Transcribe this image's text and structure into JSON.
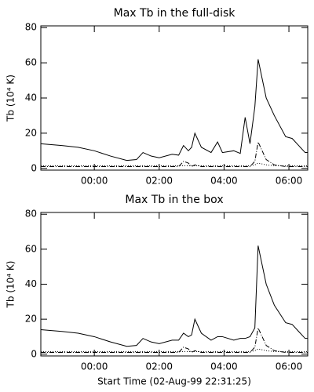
{
  "chart_data": [
    {
      "type": "line",
      "title": "Max Tb in the full-disk",
      "y_label": "Tb (10⁴ K)",
      "x": [
        -1.65,
        -1,
        -0.5,
        0,
        0.5,
        1,
        1.3,
        1.5,
        1.75,
        2,
        2.4,
        2.6,
        2.75,
        2.9,
        3.0,
        3.1,
        3.3,
        3.6,
        3.8,
        3.95,
        4.3,
        4.5,
        4.65,
        4.8,
        4.95,
        5.05,
        5.3,
        5.55,
        5.9,
        6.1,
        6.3,
        6.5,
        6.58
      ],
      "series": [
        {
          "color": "#000000",
          "dash": "solid",
          "values": [
            14,
            13,
            12,
            10,
            7,
            4.5,
            5,
            9,
            7,
            6,
            8,
            7.5,
            13,
            10,
            12,
            20,
            12,
            9,
            15,
            9,
            10,
            8.5,
            29,
            14,
            35,
            62,
            40,
            30,
            18,
            17,
            13,
            9,
            9
          ]
        },
        {
          "color": "#000000",
          "dash": "dashdot",
          "values": [
            1,
            1,
            1,
            1,
            1,
            1,
            1,
            1,
            1,
            1,
            1,
            1,
            4,
            3,
            1,
            2,
            1,
            1,
            1,
            1,
            1,
            1,
            1,
            1,
            4,
            15,
            5,
            2,
            1,
            1,
            1,
            1,
            1
          ]
        },
        {
          "color": "#000000",
          "dash": "dot",
          "values": [
            1.5,
            1.5,
            1.5,
            1.5,
            1.5,
            1.5,
            1.5,
            1.5,
            1.5,
            1.5,
            1.5,
            1.5,
            1.5,
            1.5,
            1.5,
            1.5,
            1.5,
            1.5,
            1.5,
            1.5,
            1.5,
            1.5,
            1.5,
            1.5,
            2,
            3,
            2,
            1.5,
            1.5,
            1.5,
            1.5,
            1.5,
            1.5
          ]
        }
      ],
      "xlim": [
        -1.65,
        6.58
      ],
      "xticks": [
        {
          "value": 0,
          "label": "00:00"
        },
        {
          "value": 2,
          "label": "02:00"
        },
        {
          "value": 4,
          "label": "04:00"
        },
        {
          "value": 6,
          "label": "06:00"
        }
      ],
      "ylim": [
        -1,
        81
      ],
      "yticks": [
        0,
        20,
        40,
        60,
        80
      ]
    },
    {
      "type": "line",
      "title": "Max Tb in the box",
      "y_label": "Tb (10⁴ K)",
      "x_label": "Start Time (02-Aug-99 22:31:25)",
      "x": [
        -1.65,
        -1,
        -0.5,
        0,
        0.5,
        1,
        1.3,
        1.5,
        1.75,
        2,
        2.4,
        2.6,
        2.75,
        2.9,
        3.0,
        3.1,
        3.3,
        3.6,
        3.8,
        3.95,
        4.3,
        4.5,
        4.65,
        4.8,
        4.95,
        5.05,
        5.3,
        5.55,
        5.9,
        6.1,
        6.3,
        6.5,
        6.58
      ],
      "series": [
        {
          "color": "#000000",
          "dash": "solid",
          "values": [
            14,
            13,
            12,
            10,
            7,
            4.5,
            5,
            9,
            7,
            6,
            8,
            8,
            12,
            10,
            11,
            20,
            12,
            8,
            10,
            10,
            8,
            9,
            9,
            10,
            15,
            62,
            40,
            28,
            18,
            17,
            13,
            9,
            9
          ]
        },
        {
          "color": "#000000",
          "dash": "dashdot",
          "values": [
            1,
            1,
            1,
            1,
            1,
            1,
            1,
            1,
            1,
            1,
            1,
            1,
            4,
            3,
            1,
            2,
            1,
            1,
            1,
            1,
            1,
            1,
            1,
            1,
            4,
            15,
            5,
            2,
            1,
            1,
            1,
            1,
            1
          ]
        },
        {
          "color": "#000000",
          "dash": "dot",
          "values": [
            1.5,
            1.5,
            1.5,
            1.5,
            1.5,
            1.5,
            1.5,
            1.5,
            1.5,
            1.5,
            1.5,
            1.5,
            1.5,
            1.5,
            1.5,
            1.5,
            1.5,
            1.5,
            1.5,
            1.5,
            1.5,
            1.5,
            1.5,
            1.5,
            2,
            3,
            2,
            1.5,
            1.5,
            1.5,
            1.5,
            1.5,
            1.5
          ]
        }
      ],
      "xlim": [
        -1.65,
        6.58
      ],
      "xticks": [
        {
          "value": 0,
          "label": "00:00"
        },
        {
          "value": 2,
          "label": "02:00"
        },
        {
          "value": 4,
          "label": "04:00"
        },
        {
          "value": 6,
          "label": "06:00"
        }
      ],
      "ylim": [
        -1,
        81
      ],
      "yticks": [
        0,
        20,
        40,
        60,
        80
      ]
    }
  ]
}
